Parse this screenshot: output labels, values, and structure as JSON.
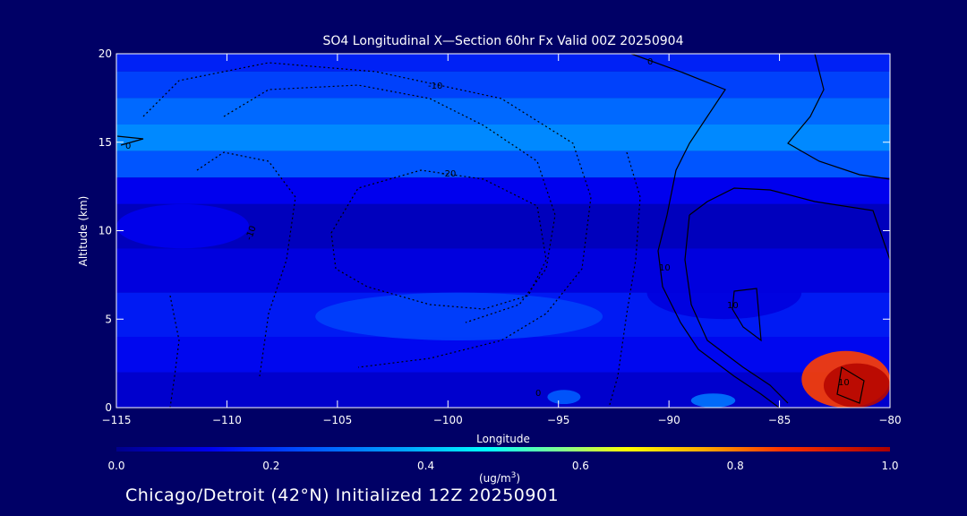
{
  "chart_data": {
    "type": "heatmap",
    "title": "SO4 Longitudinal X—Section 60hr  Fx Valid 00Z 20250904",
    "xlabel": "Longitude",
    "ylabel": "Altitude (km)",
    "xlim": [
      -115,
      -80
    ],
    "ylim": [
      0,
      20
    ],
    "x_ticks": [
      -115,
      -110,
      -105,
      -100,
      -95,
      -90,
      -85,
      -80
    ],
    "y_ticks": [
      0,
      5,
      10,
      15,
      20
    ],
    "colorbar": {
      "ticks": [
        0.0,
        0.2,
        0.4,
        0.6,
        0.8,
        1.0
      ],
      "tick_labels": [
        "0.0",
        "0.2",
        "0.4",
        "0.6",
        "0.8",
        "1.0"
      ],
      "unit_base": "(ug/m",
      "unit_sup": "3",
      "unit_close": ")",
      "range": [
        0.0,
        1.0
      ]
    },
    "contour_labels": [
      "0",
      "-10",
      "-20",
      "-10",
      "0",
      "10",
      "10",
      "10",
      "0"
    ],
    "bands": [
      {
        "y0": 19.0,
        "y1": 20.0,
        "value": 0.17
      },
      {
        "y0": 17.5,
        "y1": 19.0,
        "value": 0.22
      },
      {
        "y0": 16.0,
        "y1": 17.5,
        "value": 0.28
      },
      {
        "y0": 14.5,
        "y1": 16.0,
        "value": 0.33
      },
      {
        "y0": 13.0,
        "y1": 14.5,
        "value": 0.25
      },
      {
        "y0": 11.5,
        "y1": 13.0,
        "value": 0.12
      },
      {
        "y0": 9.0,
        "y1": 11.5,
        "value": 0.06
      },
      {
        "y0": 6.5,
        "y1": 9.0,
        "value": 0.1
      },
      {
        "y0": 4.0,
        "y1": 6.5,
        "value": 0.16
      },
      {
        "y0": 2.0,
        "y1": 4.0,
        "value": 0.13
      },
      {
        "y0": 0.0,
        "y1": 2.0,
        "value": 0.08
      }
    ],
    "features": [
      {
        "x": [
          -115,
          -109
        ],
        "y": [
          9,
          11.5
        ],
        "value": 0.12
      },
      {
        "x": [
          -106,
          -93
        ],
        "y": [
          3.8,
          6.5
        ],
        "value": 0.22
      },
      {
        "x": [
          -91,
          -84
        ],
        "y": [
          5,
          8
        ],
        "value": 0.1
      },
      {
        "x": [
          -84,
          -80
        ],
        "y": [
          0,
          3.2
        ],
        "value": 0.85
      },
      {
        "x": [
          -83,
          -80
        ],
        "y": [
          0,
          2.5
        ],
        "value": 0.98
      },
      {
        "x": [
          -89,
          -87
        ],
        "y": [
          0,
          0.8
        ],
        "value": 0.3
      },
      {
        "x": [
          -95.5,
          -94
        ],
        "y": [
          0.2,
          1.0
        ],
        "value": 0.26
      }
    ]
  },
  "footer": {
    "text": "Chicago/Detroit (42°N) Initialized 12Z 20250901"
  },
  "colors": {
    "background": "#000066",
    "axis": "#ffffff"
  }
}
